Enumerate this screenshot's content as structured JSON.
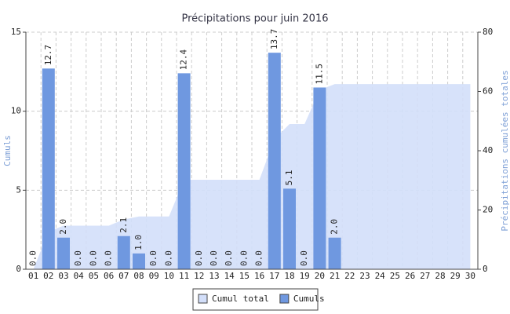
{
  "chart_data": {
    "type": "bar",
    "title": "Précipitations pour juin 2016",
    "y_label": "Cumuls",
    "y2_label": "Précipitations cumulées totales",
    "categories": [
      "01",
      "02",
      "03",
      "04",
      "05",
      "06",
      "07",
      "08",
      "09",
      "10",
      "11",
      "12",
      "13",
      "14",
      "15",
      "16",
      "17",
      "18",
      "19",
      "20",
      "21",
      "22",
      "23",
      "24",
      "25",
      "26",
      "27",
      "28",
      "29",
      "30"
    ],
    "series": [
      {
        "name": "Cumul total",
        "color": "#d3dffa",
        "axis": "y2",
        "type": "area",
        "values": [
          0,
          12.7,
          14.7,
          14.7,
          14.7,
          14.7,
          16.8,
          17.8,
          17.8,
          17.8,
          30.2,
          30.2,
          30.2,
          30.2,
          30.2,
          30.2,
          43.9,
          49.0,
          49.0,
          60.5,
          62.5,
          62.5,
          62.5,
          62.5,
          62.5,
          62.5,
          62.5,
          62.5,
          62.5,
          62.5
        ]
      },
      {
        "name": "Cumuls",
        "color": "#6f98e0",
        "type": "bar",
        "values": [
          0,
          12.7,
          2,
          0,
          0,
          0,
          2.1,
          1,
          0,
          0,
          12.4,
          0,
          0,
          0,
          0,
          0,
          13.7,
          5.1,
          0,
          11.5,
          2,
          null,
          null,
          null,
          null,
          null,
          null,
          null,
          null,
          null
        ],
        "value_labels": [
          "0.0",
          "12.7",
          "2.0",
          "0.0",
          "0.0",
          "0.0",
          "2.1",
          "1.0",
          "0.0",
          "0.0",
          "12.4",
          "0.0",
          "0.0",
          "0.0",
          "0.0",
          "0.0",
          "13.7",
          "5.1",
          "0.0",
          "11.5",
          "2.0",
          null,
          null,
          null,
          null,
          null,
          null,
          null,
          null,
          null
        ]
      }
    ],
    "ylim": [
      0,
      15
    ],
    "yticks": [
      0,
      5,
      10,
      15
    ],
    "y2lim": [
      0,
      80
    ],
    "y2ticks": [
      0,
      20,
      40,
      60,
      80
    ],
    "grid": true,
    "legend": "bottom"
  }
}
